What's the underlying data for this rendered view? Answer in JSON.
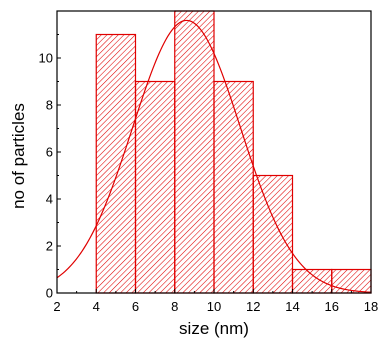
{
  "chart_data": {
    "type": "bar",
    "title": "",
    "xlabel": "size (nm)",
    "ylabel": "no of particles",
    "xlim": [
      2,
      18
    ],
    "ylim": [
      0,
      12
    ],
    "x_ticks": [
      2,
      4,
      6,
      8,
      10,
      12,
      14,
      16,
      18
    ],
    "y_ticks": [
      0,
      2,
      4,
      6,
      8,
      10
    ],
    "bins": [
      {
        "from": 4,
        "to": 6,
        "value": 11
      },
      {
        "from": 6,
        "to": 8,
        "value": 9
      },
      {
        "from": 8,
        "to": 10,
        "value": 12
      },
      {
        "from": 10,
        "to": 12,
        "value": 9
      },
      {
        "from": 12,
        "to": 14,
        "value": 5
      },
      {
        "from": 14,
        "to": 16,
        "value": 1
      },
      {
        "from": 16,
        "to": 18,
        "value": 1
      }
    ],
    "fit_curve": {
      "type": "gaussian",
      "center": 8.6,
      "sigma": 2.75,
      "amplitude": 11.6
    },
    "bar_color": "#e00000",
    "curve_color": "#e00000",
    "hatch": "diagonal"
  }
}
